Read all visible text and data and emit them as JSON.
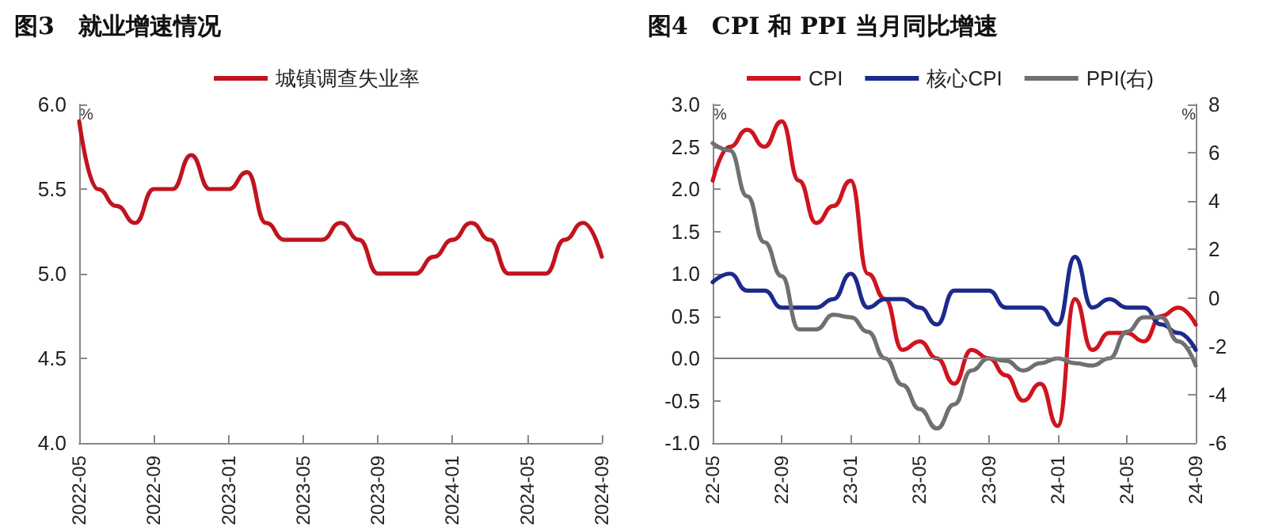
{
  "chart_data": [
    {
      "type": "line",
      "title": "图3　就业增速情况",
      "ylabel": "%",
      "categories": [
        "2022-05",
        null,
        null,
        null,
        "2022-09",
        null,
        null,
        null,
        "2023-01",
        null,
        null,
        null,
        "2023-05",
        null,
        null,
        null,
        "2023-09",
        null,
        null,
        null,
        "2024-01",
        null,
        null,
        null,
        "2024-05",
        null,
        null,
        null,
        "2024-09"
      ],
      "series": [
        {
          "name": "城镇调查失业率",
          "color": "#c0141e",
          "values": [
            5.9,
            5.5,
            5.4,
            5.3,
            5.5,
            5.5,
            5.7,
            5.5,
            5.5,
            5.6,
            5.3,
            5.2,
            5.2,
            5.2,
            5.3,
            5.2,
            5.0,
            5.0,
            5.0,
            5.1,
            5.2,
            5.3,
            5.2,
            5.0,
            5.0,
            5.0,
            5.2,
            5.3,
            5.1
          ]
        }
      ],
      "ylim": [
        4,
        6
      ],
      "yticks": [
        {
          "value": 4,
          "label": "4.0"
        },
        {
          "value": 4.5,
          "label": "4.5"
        },
        {
          "value": 5,
          "label": "5.0"
        },
        {
          "value": 5.5,
          "label": "5.5"
        },
        {
          "value": 6,
          "label": "6.0"
        }
      ],
      "grid": false,
      "legend": "top",
      "marker": "none",
      "line_style": "solid"
    },
    {
      "type": "line",
      "title": "图4　CPI 和 PPI 当月同比增速",
      "ylabel": "%",
      "y2label": "%",
      "categories": [
        "22-05",
        null,
        null,
        null,
        "22-09",
        null,
        null,
        null,
        "23-01",
        null,
        null,
        null,
        "23-05",
        null,
        null,
        null,
        "23-09",
        null,
        null,
        null,
        "24-01",
        null,
        null,
        null,
        "24-05",
        null,
        null,
        null,
        "24-09"
      ],
      "series": [
        {
          "name": "CPI",
          "color": "#d0141e",
          "values": [
            2.1,
            2.5,
            2.7,
            2.5,
            2.8,
            2.1,
            1.6,
            1.8,
            2.1,
            1.0,
            0.7,
            0.1,
            0.2,
            0.0,
            -0.3,
            0.1,
            0.0,
            -0.2,
            -0.5,
            -0.3,
            -0.8,
            0.7,
            0.1,
            0.3,
            0.3,
            0.2,
            0.5,
            0.6,
            0.4
          ]
        },
        {
          "name": "核心CPI",
          "color": "#1c2a8c",
          "values": [
            0.9,
            1.0,
            0.8,
            0.8,
            0.6,
            0.6,
            0.6,
            0.7,
            1.0,
            0.6,
            0.7,
            0.7,
            0.6,
            0.4,
            0.8,
            0.8,
            0.8,
            0.6,
            0.6,
            0.6,
            0.4,
            1.2,
            0.6,
            0.7,
            0.6,
            0.6,
            0.4,
            0.3,
            0.1
          ]
        },
        {
          "name": "PPI(右)",
          "color": "#707070",
          "axis": "y2",
          "values": [
            6.4,
            6.1,
            4.2,
            2.3,
            0.9,
            -1.3,
            -1.3,
            -0.7,
            -0.8,
            -1.4,
            -2.5,
            -3.6,
            -4.6,
            -5.4,
            -4.4,
            -3.0,
            -2.5,
            -2.6,
            -3.0,
            -2.7,
            -2.5,
            -2.7,
            -2.8,
            -2.5,
            -1.4,
            -0.8,
            -0.8,
            -1.8,
            -2.8
          ]
        }
      ],
      "ylim": [
        -1,
        3
      ],
      "yticks": [
        {
          "value": -1,
          "label": "-1.0"
        },
        {
          "value": -0.5,
          "label": "-0.5"
        },
        {
          "value": 0,
          "label": "0.0"
        },
        {
          "value": 0.5,
          "label": "0.5"
        },
        {
          "value": 1,
          "label": "1.0"
        },
        {
          "value": 1.5,
          "label": "1.5"
        },
        {
          "value": 2,
          "label": "2.0"
        },
        {
          "value": 2.5,
          "label": "2.5"
        },
        {
          "value": 3,
          "label": "3.0"
        }
      ],
      "y2lim": [
        -6,
        8
      ],
      "y2ticks": [
        -6,
        -4,
        -2,
        0,
        2,
        4,
        6,
        8
      ],
      "ref_lines": [
        {
          "axis": "y",
          "value": 0,
          "color": "#808080"
        }
      ],
      "grid": false,
      "legend": "top",
      "marker": "none",
      "line_style": "solid"
    }
  ]
}
